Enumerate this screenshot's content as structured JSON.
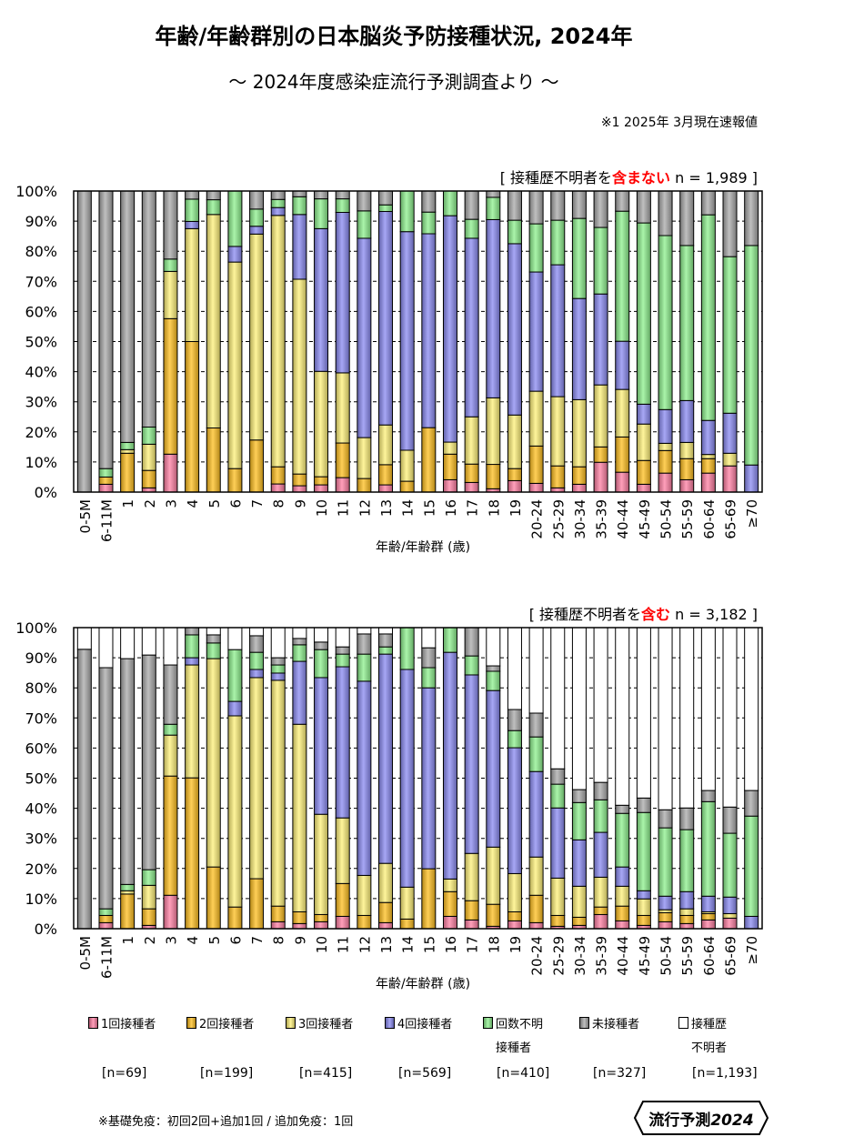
{
  "title": "年齢/年齢群別の日本脳炎予防接種状況, 2024年",
  "subtitle": "～ 2024年度感染症流行予測調査より ～",
  "note": "※1  2025年 3月現在速報値",
  "colors": {
    "1回接種者": "#ff7fa3",
    "2回接種者": "#ffbf1f",
    "3回接種者": "#fff27a",
    "4回接種者": "#8a8af2",
    "回数不明接種者": "#8ef08e",
    "未接種者": "#a9a9a9",
    "接種歴不明者": "#ffffff"
  },
  "legend": [
    {
      "line1": "1回接種者",
      "line2": "",
      "n": "[n=69]"
    },
    {
      "line1": "2回接種者",
      "line2": "",
      "n": "[n=199]"
    },
    {
      "line1": "3回接種者",
      "line2": "",
      "n": "[n=415]"
    },
    {
      "line1": "4回接種者",
      "line2": "",
      "n": "[n=569]"
    },
    {
      "line1": "回数不明",
      "line2": "接種者",
      "n": "[n=410]"
    },
    {
      "line1": "未接種者",
      "line2": "",
      "n": "[n=327]"
    },
    {
      "line1": "接種歴",
      "line2": "不明者",
      "n": "[n=1,193]"
    }
  ],
  "footnote": "※基礎免疫：初回2回+追加1回 / 追加免疫：1回",
  "logo": {
    "text": "流行予測",
    "year": "2024"
  },
  "chart_data": [
    {
      "type": "bar",
      "stacked": true,
      "label_prefix": "[ 接種歴不明者を",
      "label_highlight": "含まない",
      "label_suffix": " n = 1,989 ]",
      "xlabel": "年齢/年齢群 (歳)",
      "ylabel": "",
      "ylim": [
        0,
        100
      ],
      "yticks": [
        "0%",
        "10%",
        "20%",
        "30%",
        "40%",
        "50%",
        "60%",
        "70%",
        "80%",
        "90%",
        "100%"
      ],
      "grid": true,
      "series_names": [
        "1回接種者",
        "2回接種者",
        "3回接種者",
        "4回接種者",
        "回数不明接種者",
        "未接種者"
      ],
      "categories": [
        "0-5M",
        "6-11M",
        "1",
        "2",
        "3",
        "4",
        "5",
        "6",
        "7",
        "8",
        "9",
        "10",
        "11",
        "12",
        "13",
        "14",
        "15",
        "16",
        "17",
        "18",
        "19",
        "20-24",
        "25-29",
        "30-34",
        "35-39",
        "40-44",
        "45-49",
        "50-54",
        "55-59",
        "60-64",
        "65-69",
        "≥70"
      ],
      "values": [
        [
          0,
          0,
          0,
          0,
          0,
          100
        ],
        [
          2.6,
          2.4,
          0,
          0,
          2.8,
          92.2
        ],
        [
          0,
          12.9,
          1.2,
          0,
          2.4,
          83.5
        ],
        [
          1.4,
          5.8,
          8.7,
          0,
          5.7,
          78.4
        ],
        [
          12.6,
          45,
          15.7,
          0,
          4.1,
          22.6
        ],
        [
          0,
          50,
          37.5,
          2.4,
          7.4,
          2.7
        ],
        [
          0,
          21.3,
          70.9,
          0,
          4.9,
          2.9
        ],
        [
          0,
          7.8,
          68.6,
          5.2,
          18.4,
          0
        ],
        [
          0,
          17.3,
          68.4,
          2.6,
          5.7,
          6
        ],
        [
          2.7,
          5.7,
          83.5,
          2.6,
          2.7,
          2.8
        ],
        [
          2.1,
          3.9,
          64.7,
          21.5,
          5.9,
          1.9
        ],
        [
          2.4,
          2.7,
          35,
          47.4,
          9.9,
          2.6
        ],
        [
          4.8,
          11.5,
          23.3,
          53.3,
          4.5,
          2.6
        ],
        [
          0,
          4.5,
          13.6,
          66.2,
          9.1,
          6.6
        ],
        [
          2.4,
          6.7,
          13.2,
          70.9,
          2.2,
          4.6
        ],
        [
          0,
          3.6,
          10.3,
          72.6,
          13.5,
          0
        ],
        [
          0,
          21.4,
          0,
          64.4,
          7.2,
          7
        ],
        [
          4.1,
          8.5,
          4,
          75.2,
          8.2,
          0
        ],
        [
          3.2,
          6.1,
          15.7,
          59.3,
          6.3,
          9.4
        ],
        [
          1.1,
          8.1,
          22.1,
          59.2,
          7.4,
          2.1
        ],
        [
          3.8,
          4,
          17.8,
          56.9,
          7.8,
          9.7
        ],
        [
          2.9,
          12.4,
          18.2,
          39.6,
          16,
          10.9
        ],
        [
          1.4,
          7.3,
          23,
          43.8,
          14.8,
          9.7
        ],
        [
          2.6,
          5.8,
          22.3,
          33.6,
          26.6,
          9.1
        ],
        [
          9.9,
          5.1,
          20.6,
          30.2,
          22.1,
          12.1
        ],
        [
          6.6,
          11.7,
          15.8,
          16,
          43.2,
          6.7
        ],
        [
          2.6,
          7.9,
          12.1,
          6.6,
          60.2,
          10.6
        ],
        [
          6.3,
          7.5,
          2.4,
          11.2,
          57.8,
          14.8
        ],
        [
          4.1,
          7,
          5.4,
          13.9,
          51.5,
          18.1
        ],
        [
          6.3,
          4.8,
          1.4,
          11.3,
          68.3,
          7.9
        ],
        [
          8.7,
          0,
          4.2,
          13.3,
          52,
          21.8
        ],
        [
          0,
          0,
          0,
          9,
          72.9,
          18.1
        ]
      ]
    },
    {
      "type": "bar",
      "stacked": true,
      "label_prefix": "[ 接種歴不明者を",
      "label_highlight": "含む",
      "label_suffix": " n = 3,182 ]",
      "xlabel": "年齢/年齢群 (歳)",
      "ylabel": "",
      "ylim": [
        0,
        100
      ],
      "yticks": [
        "0%",
        "10%",
        "20%",
        "30%",
        "40%",
        "50%",
        "60%",
        "70%",
        "80%",
        "90%",
        "100%"
      ],
      "grid": true,
      "series_names": [
        "1回接種者",
        "2回接種者",
        "3回接種者",
        "4回接種者",
        "回数不明接種者",
        "未接種者",
        "接種歴不明者"
      ],
      "categories": [
        "0-5M",
        "6-11M",
        "1",
        "2",
        "3",
        "4",
        "5",
        "6",
        "7",
        "8",
        "9",
        "10",
        "11",
        "12",
        "13",
        "14",
        "15",
        "16",
        "17",
        "18",
        "19",
        "20-24",
        "25-29",
        "30-34",
        "35-39",
        "40-44",
        "45-49",
        "50-54",
        "55-59",
        "60-64",
        "65-69",
        "≥70"
      ],
      "values": [
        [
          0,
          0,
          0,
          0,
          0,
          92.8,
          7.2
        ],
        [
          2,
          2.4,
          0,
          0,
          2.2,
          80.1,
          13.3
        ],
        [
          0,
          11.5,
          1.1,
          0,
          2.1,
          75,
          10.3
        ],
        [
          1.1,
          5.5,
          7.8,
          0,
          5.2,
          71.3,
          9.1
        ],
        [
          11.1,
          39.6,
          13.6,
          0,
          3.6,
          19.7,
          12.4
        ],
        [
          0,
          50.1,
          37.5,
          2.4,
          7.6,
          2.4,
          0
        ],
        [
          0,
          20.5,
          69.2,
          0,
          5.2,
          2.7,
          2.4
        ],
        [
          0,
          7.2,
          63.5,
          4.8,
          17.2,
          0,
          7.3
        ],
        [
          0,
          16.6,
          66.8,
          2.7,
          5.7,
          5.5,
          2.7
        ],
        [
          2.3,
          5.2,
          75,
          2.4,
          2.7,
          2.4,
          10
        ],
        [
          1.7,
          3.9,
          62.3,
          20.9,
          5.5,
          2.1,
          3.6
        ],
        [
          2.3,
          2.4,
          33.3,
          45.4,
          9.3,
          2.5,
          4.8
        ],
        [
          4.1,
          10.9,
          21.8,
          50.2,
          4.2,
          2.4,
          6.4
        ],
        [
          0,
          4.4,
          13.3,
          64.5,
          9,
          6.7,
          2.1
        ],
        [
          2,
          6.7,
          13,
          69.5,
          2.4,
          4.3,
          2.1
        ],
        [
          0,
          3.2,
          10.6,
          72.3,
          13.9,
          0,
          0
        ],
        [
          0,
          19.9,
          0,
          60.1,
          6.7,
          6.6,
          6.7
        ],
        [
          4.1,
          8.2,
          4.2,
          75.3,
          8.2,
          0,
          0
        ],
        [
          2.9,
          6.4,
          15.7,
          59.3,
          6.3,
          9.4,
          0
        ],
        [
          0.8,
          7.3,
          19,
          52,
          6.4,
          1.8,
          12.7
        ],
        [
          2.6,
          3,
          12.7,
          41.8,
          5.7,
          7,
          27.2
        ],
        [
          2,
          9.1,
          12.7,
          28.4,
          11.5,
          7.9,
          28.4
        ],
        [
          0.8,
          3.6,
          12.4,
          23.3,
          7.9,
          5.1,
          46.9
        ],
        [
          1.1,
          2.7,
          10.3,
          15.4,
          12.4,
          4.3,
          53.8
        ],
        [
          4.7,
          2.5,
          9.9,
          14.9,
          10.8,
          5.8,
          51.4
        ],
        [
          2.6,
          4.9,
          6.6,
          6.4,
          17.8,
          2.7,
          59
        ],
        [
          1.1,
          3.3,
          5.5,
          2.7,
          26,
          4.8,
          56.6
        ],
        [
          2.3,
          3,
          1,
          4.5,
          22.7,
          6,
          60.5
        ],
        [
          1.7,
          2.7,
          2.2,
          5.7,
          20.6,
          7.2,
          59.9
        ],
        [
          2.9,
          2.1,
          0.6,
          5.2,
          31.4,
          3.7,
          54.1
        ],
        [
          3.5,
          0,
          1.5,
          5.5,
          21.2,
          8.7,
          59.6
        ],
        [
          0,
          0,
          0,
          4.1,
          33.3,
          8.5,
          54.1
        ]
      ]
    }
  ]
}
